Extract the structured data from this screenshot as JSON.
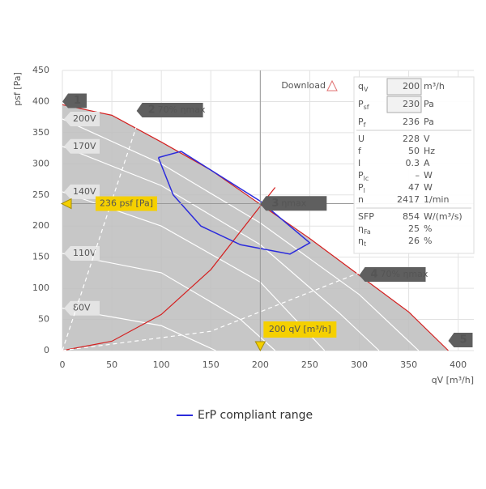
{
  "chart_data": {
    "type": "line",
    "xlabel": "qV [m³/h]",
    "ylabel": "psf [Pa]",
    "xlim": [
      0,
      415
    ],
    "ylim": [
      0,
      450
    ],
    "xticks": [
      0,
      50,
      100,
      150,
      200,
      250,
      300,
      350,
      400
    ],
    "yticks": [
      0,
      50,
      100,
      150,
      200,
      250,
      300,
      350,
      400,
      450
    ],
    "grid": true,
    "area": {
      "color": "#bdbdbd",
      "x": [
        0,
        50,
        100,
        150,
        200,
        250,
        300,
        350,
        390
      ],
      "values": [
        395,
        378,
        335,
        290,
        235,
        180,
        121,
        62,
        0
      ]
    },
    "series": [
      {
        "color": "#d42020",
        "x": [
          0,
          50,
          100,
          150,
          200,
          250,
          300,
          350,
          390
        ],
        "values": [
          395,
          378,
          335,
          290,
          235,
          180,
          121,
          62,
          0
        ]
      },
      {
        "name": "200V",
        "color": "#ffffff",
        "x": [
          0,
          100,
          200,
          300,
          360
        ],
        "values": [
          372,
          300,
          205,
          90,
          0
        ]
      },
      {
        "name": "170V",
        "color": "#ffffff",
        "x": [
          0,
          100,
          200,
          280,
          320
        ],
        "values": [
          328,
          265,
          170,
          60,
          0
        ]
      },
      {
        "name": "140V",
        "color": "#ffffff",
        "x": [
          0,
          100,
          200,
          265
        ],
        "values": [
          255,
          200,
          110,
          0
        ]
      },
      {
        "name": "110V",
        "color": "#ffffff",
        "x": [
          0,
          100,
          180,
          215
        ],
        "values": [
          156,
          125,
          50,
          0
        ]
      },
      {
        "name": "80V",
        "color": "#ffffff",
        "x": [
          0,
          100,
          155
        ],
        "values": [
          68,
          40,
          0
        ]
      },
      {
        "color": "#d42020",
        "x": [
          0,
          50,
          100,
          150,
          200,
          215
        ],
        "values": [
          0,
          15,
          58,
          130,
          232,
          262
        ]
      },
      {
        "color": "#ffffff",
        "dash": true,
        "x": [
          0,
          80
        ],
        "values": [
          0,
          385
        ]
      },
      {
        "color": "#ffffff",
        "dash": true,
        "x": [
          0,
          150,
          300
        ],
        "values": [
          0,
          31,
          125
        ]
      },
      {
        "name": "ErP compliant range",
        "color": "#2b2bdc",
        "legend": true,
        "x": [
          97,
          120,
          200,
          250,
          230,
          180,
          140,
          112,
          97
        ],
        "values": [
          310,
          320,
          240,
          173,
          155,
          170,
          200,
          250,
          310
        ]
      }
    ],
    "markers": [
      {
        "number": "1",
        "x": 0,
        "y": 400
      },
      {
        "number": "2",
        "text": "70% ηmax",
        "x": 75,
        "y": 385
      },
      {
        "number": "3",
        "text": "ηmax",
        "x": 200,
        "y": 235
      },
      {
        "number": "4",
        "text": "70% ηmax",
        "x": 300,
        "y": 121
      },
      {
        "number": "5",
        "x": 390,
        "y": 0
      }
    ],
    "operating_point": {
      "x": 200,
      "y": 236,
      "x_label": "200 qV [m³/h]",
      "y_label": "236 psf [Pa]"
    }
  },
  "panel": {
    "download": "Download",
    "groups": [
      [
        {
          "sym": "q",
          "sub": "V",
          "value": "200",
          "unit": "m³/h",
          "input": true
        },
        {
          "sym": "P",
          "sub": "sf",
          "value": "230",
          "unit": "Pa",
          "input": true
        },
        {
          "sym": "P",
          "sub": "f",
          "value": "236",
          "unit": "Pa"
        }
      ],
      [
        {
          "sym": "U",
          "value": "228",
          "unit": "V"
        },
        {
          "sym": "f",
          "value": "50",
          "unit": "Hz"
        },
        {
          "sym": "I",
          "value": "0.3",
          "unit": "A"
        },
        {
          "sym": "P",
          "sub": "lc",
          "value": "–",
          "unit": "W"
        },
        {
          "sym": "P",
          "sub": "l",
          "value": "47",
          "unit": "W"
        },
        {
          "sym": "n",
          "value": "2417",
          "unit": "1/min"
        }
      ],
      [
        {
          "sym": "SFP",
          "value": "854",
          "unit": "W/(m³/s)"
        },
        {
          "sym": "η",
          "sub": "Fa",
          "value": "25",
          "unit": "%"
        },
        {
          "sym": "η",
          "sub": "t",
          "value": "26",
          "unit": "%"
        }
      ]
    ]
  }
}
